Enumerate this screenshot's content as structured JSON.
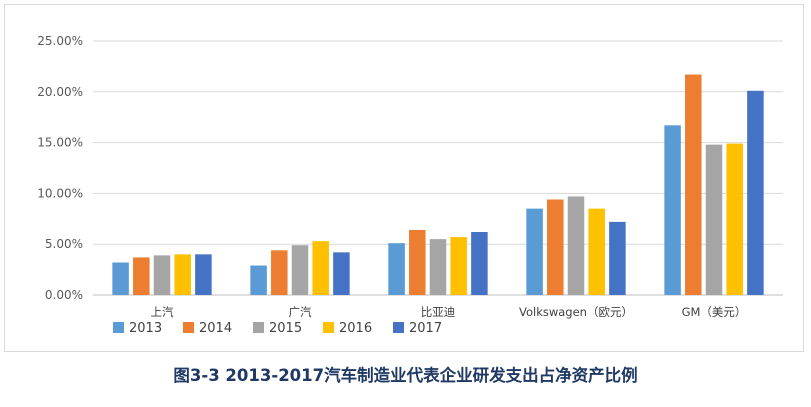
{
  "caption": "图3-3 2013-2017汽车制造业代表企业研发支出占净资产比例",
  "chart_data": {
    "type": "bar",
    "title": "",
    "xlabel": "",
    "ylabel": "",
    "categories": [
      "上汽",
      "广汽",
      "比亚迪",
      "Volkswagen（欧元）",
      "GM（美元）"
    ],
    "series": [
      {
        "name": "2013",
        "color": "#5b9bd5",
        "values": [
          3.2,
          2.9,
          5.1,
          8.5,
          16.7
        ]
      },
      {
        "name": "2014",
        "color": "#ed7d31",
        "values": [
          3.7,
          4.4,
          6.4,
          9.4,
          21.7
        ]
      },
      {
        "name": "2015",
        "color": "#a5a5a5",
        "values": [
          3.9,
          4.9,
          5.5,
          9.7,
          14.8
        ]
      },
      {
        "name": "2016",
        "color": "#ffc000",
        "values": [
          4.0,
          5.3,
          5.7,
          8.5,
          14.9
        ]
      },
      {
        "name": "2017",
        "color": "#4472c4",
        "values": [
          4.0,
          4.2,
          6.2,
          7.2,
          20.1
        ]
      }
    ],
    "ylim": [
      0,
      25
    ],
    "yticks": [
      0,
      5,
      10,
      15,
      20,
      25
    ],
    "ytick_labels": [
      "0.00%",
      "5.00%",
      "10.00%",
      "15.00%",
      "20.00%",
      "25.00%"
    ],
    "grid": true,
    "legend_position": "bottom-left"
  }
}
